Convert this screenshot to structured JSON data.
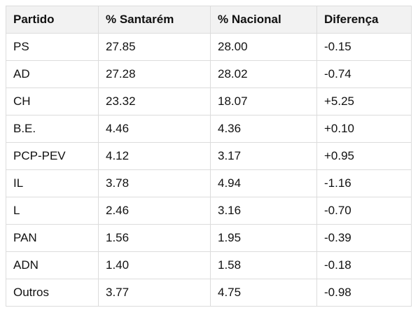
{
  "table": {
    "header": [
      "Partido",
      "% Santarém",
      "% Nacional",
      "Diferença"
    ],
    "rows": [
      [
        "PS",
        "27.85",
        "28.00",
        "-0.15"
      ],
      [
        "AD",
        "27.28",
        "28.02",
        "-0.74"
      ],
      [
        "CH",
        "23.32",
        "18.07",
        "+5.25"
      ],
      [
        "B.E.",
        "4.46",
        "4.36",
        "+0.10"
      ],
      [
        "PCP-PEV",
        "4.12",
        "3.17",
        "+0.95"
      ],
      [
        "IL",
        "3.78",
        "4.94",
        "-1.16"
      ],
      [
        "L",
        "2.46",
        "3.16",
        "-0.70"
      ],
      [
        "PAN",
        "1.56",
        "1.95",
        "-0.39"
      ],
      [
        "ADN",
        "1.40",
        "1.58",
        "-0.18"
      ],
      [
        "Outros",
        "3.77",
        "4.75",
        "-0.98"
      ]
    ]
  }
}
